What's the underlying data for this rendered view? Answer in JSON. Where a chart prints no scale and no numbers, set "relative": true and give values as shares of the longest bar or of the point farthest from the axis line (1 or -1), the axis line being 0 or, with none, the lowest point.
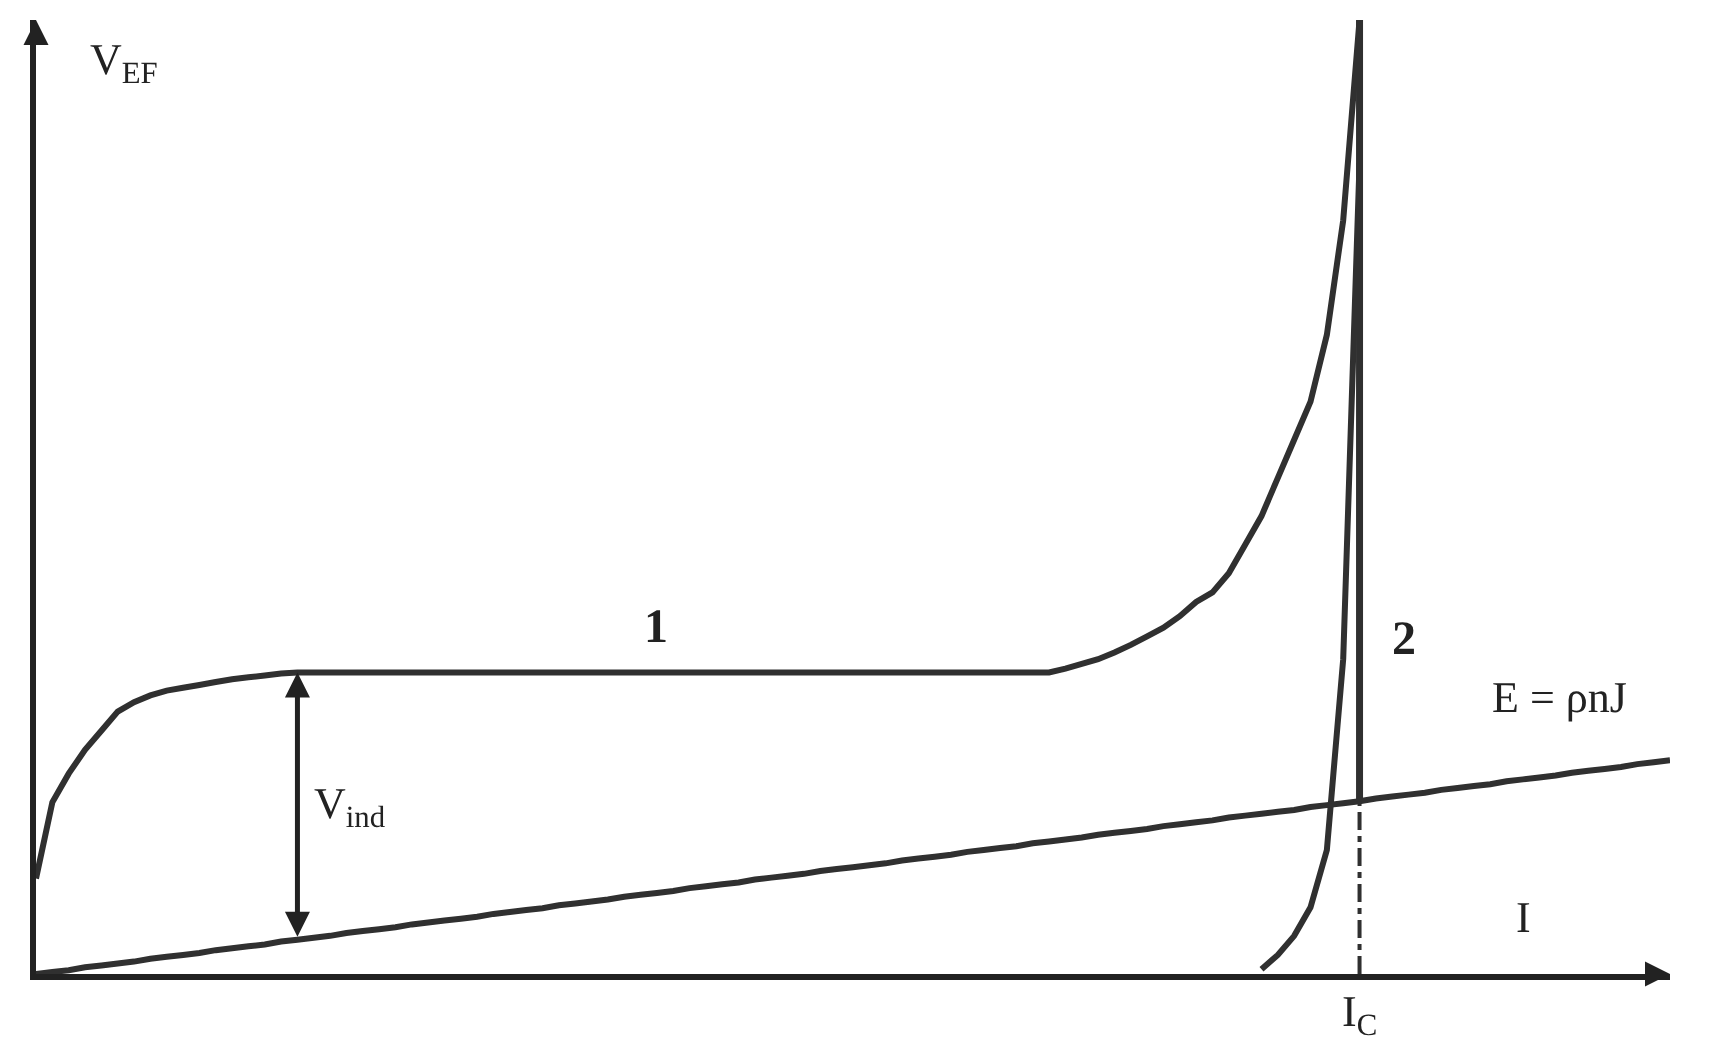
{
  "chart_data": {
    "type": "line",
    "relative": true,
    "ylabel": "V$_{EF}$",
    "xlabel": "I",
    "line_style": "solid",
    "marker": "none",
    "grid": false,
    "legend": false,
    "categories": [
      null,
      null,
      null,
      null,
      null,
      null,
      null,
      null,
      null,
      null,
      null,
      null,
      null,
      null,
      null,
      null,
      null,
      null,
      null,
      null,
      null,
      null,
      null,
      null,
      null,
      null,
      null,
      null,
      null,
      null,
      null,
      null,
      null,
      null,
      null,
      null,
      null,
      null,
      null,
      null,
      null,
      null,
      null,
      null,
      null,
      null,
      null,
      null,
      null,
      null,
      null,
      null,
      null,
      null,
      null,
      null,
      null,
      null,
      null,
      null,
      null,
      null,
      null,
      null,
      null,
      null,
      null,
      null,
      null,
      null,
      null,
      null,
      null,
      null,
      null,
      null,
      null,
      null,
      null,
      null,
      null,
      null,
      null,
      null,
      null,
      null,
      null,
      null,
      null,
      null,
      null,
      null,
      null,
      null,
      null,
      null,
      null,
      null,
      null,
      null,
      null
    ],
    "series": [
      {
        "name": "1",
        "color": "#303030",
        "values": [
          0.1,
          0.18,
          0.21,
          0.235,
          0.255,
          0.275,
          0.285,
          0.292,
          0.297,
          0.3,
          0.303,
          0.306,
          0.309,
          0.311,
          0.313,
          0.315,
          0.316,
          0.316,
          0.316,
          0.316,
          0.316,
          0.316,
          0.316,
          0.316,
          0.316,
          0.316,
          0.316,
          0.316,
          0.316,
          0.316,
          0.316,
          0.316,
          0.316,
          0.316,
          0.316,
          0.316,
          0.316,
          0.316,
          0.316,
          0.316,
          0.316,
          0.316,
          0.316,
          0.316,
          0.316,
          0.316,
          0.316,
          0.316,
          0.316,
          0.316,
          0.316,
          0.316,
          0.316,
          0.316,
          0.316,
          0.316,
          0.316,
          0.316,
          0.316,
          0.316,
          0.316,
          0.316,
          0.316,
          0.32,
          0.325,
          0.33,
          0.337,
          0.345,
          0.354,
          0.363,
          0.375,
          0.39,
          0.4,
          0.42,
          0.45,
          0.48,
          0.52,
          0.56,
          0.6,
          0.67,
          0.79,
          1,
          null,
          null,
          null,
          null,
          null,
          null,
          null,
          null,
          null,
          null,
          null,
          null,
          null,
          null,
          null,
          null,
          null,
          null,
          null
        ]
      },
      {
        "name": "2",
        "color": "#303030",
        "values": [
          null,
          null,
          null,
          null,
          null,
          null,
          null,
          null,
          null,
          null,
          null,
          null,
          null,
          null,
          null,
          null,
          null,
          null,
          null,
          null,
          null,
          null,
          null,
          null,
          null,
          null,
          null,
          null,
          null,
          null,
          null,
          null,
          null,
          null,
          null,
          null,
          null,
          null,
          null,
          null,
          null,
          null,
          null,
          null,
          null,
          null,
          null,
          null,
          null,
          null,
          null,
          null,
          null,
          null,
          null,
          null,
          null,
          null,
          null,
          null,
          null,
          null,
          null,
          null,
          null,
          null,
          null,
          null,
          null,
          null,
          null,
          null,
          null,
          null,
          null,
          0.005,
          0.02,
          0.04,
          0.07,
          0.13,
          0.33,
          0.85,
          null,
          null,
          null,
          null,
          null,
          null,
          null,
          null,
          null,
          null,
          null,
          null,
          null,
          null,
          null,
          null,
          null,
          null,
          null
        ]
      },
      {
        "name": "E = ρnJ",
        "color": "#303030",
        "values": [
          0,
          0.002,
          0.004,
          0.007,
          0.009,
          0.011,
          0.013,
          0.016,
          0.018,
          0.02,
          0.022,
          0.025,
          0.027,
          0.029,
          0.031,
          0.034,
          0.036,
          0.038,
          0.04,
          0.043,
          0.045,
          0.047,
          0.049,
          0.052,
          0.054,
          0.056,
          0.058,
          0.06,
          0.063,
          0.065,
          0.067,
          0.069,
          0.072,
          0.074,
          0.076,
          0.078,
          0.081,
          0.083,
          0.085,
          0.087,
          0.09,
          0.092,
          0.094,
          0.096,
          0.099,
          0.101,
          0.103,
          0.105,
          0.108,
          0.11,
          0.112,
          0.114,
          0.116,
          0.119,
          0.121,
          0.123,
          0.125,
          0.128,
          0.13,
          0.132,
          0.134,
          0.137,
          0.139,
          0.141,
          0.143,
          0.146,
          0.148,
          0.15,
          0.152,
          0.155,
          0.157,
          0.159,
          0.161,
          0.164,
          0.166,
          0.168,
          0.17,
          0.172,
          0.175,
          0.177,
          0.179,
          0.181,
          0.184,
          0.186,
          0.188,
          0.19,
          0.193,
          0.195,
          0.197,
          0.199,
          0.202,
          0.204,
          0.206,
          0.208,
          0.211,
          0.213,
          0.215,
          0.217,
          0.22,
          0.222,
          0.224
        ]
      }
    ],
    "ref_lines": [
      {
        "axis": "x",
        "label": "I$_{C}$",
        "color": "#303030"
      }
    ],
    "annotations": [
      "V$_{ind}$"
    ]
  }
}
